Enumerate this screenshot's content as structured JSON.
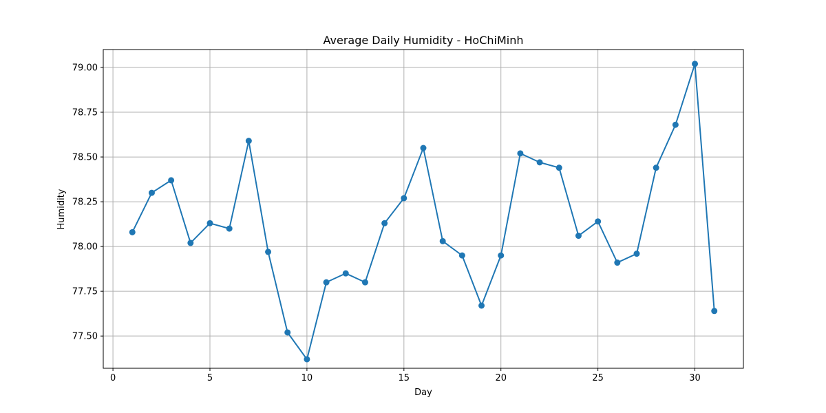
{
  "chart_data": {
    "type": "line",
    "title": "Average Daily Humidity - HoChiMinh",
    "xlabel": "Day",
    "ylabel": "Humidity",
    "xlim": [
      -0.5,
      32.5
    ],
    "ylim": [
      77.32,
      79.1
    ],
    "grid": true,
    "x_ticks": [
      0,
      5,
      10,
      15,
      20,
      25,
      30
    ],
    "y_ticks": [
      77.5,
      77.75,
      78.0,
      78.25,
      78.5,
      78.75,
      79.0
    ],
    "x_tick_labels": [
      "0",
      "5",
      "10",
      "15",
      "20",
      "25",
      "30"
    ],
    "y_tick_labels": [
      "77.50",
      "77.75",
      "78.00",
      "78.25",
      "78.50",
      "78.75",
      "79.00"
    ],
    "series": [
      {
        "color": "#1f77b4",
        "marker": "circle",
        "x": [
          1,
          2,
          3,
          4,
          5,
          6,
          7,
          8,
          9,
          10,
          11,
          12,
          13,
          14,
          15,
          16,
          17,
          18,
          19,
          20,
          21,
          22,
          23,
          24,
          25,
          26,
          27,
          28,
          29,
          30,
          31
        ],
        "y": [
          78.08,
          78.3,
          78.37,
          78.02,
          78.13,
          78.1,
          78.59,
          77.97,
          77.52,
          77.37,
          77.8,
          77.85,
          77.8,
          78.13,
          78.27,
          78.55,
          78.03,
          77.95,
          77.67,
          77.95,
          78.52,
          78.47,
          78.44,
          78.06,
          78.14,
          77.91,
          77.96,
          78.44,
          78.68,
          79.02,
          77.64
        ]
      }
    ]
  }
}
